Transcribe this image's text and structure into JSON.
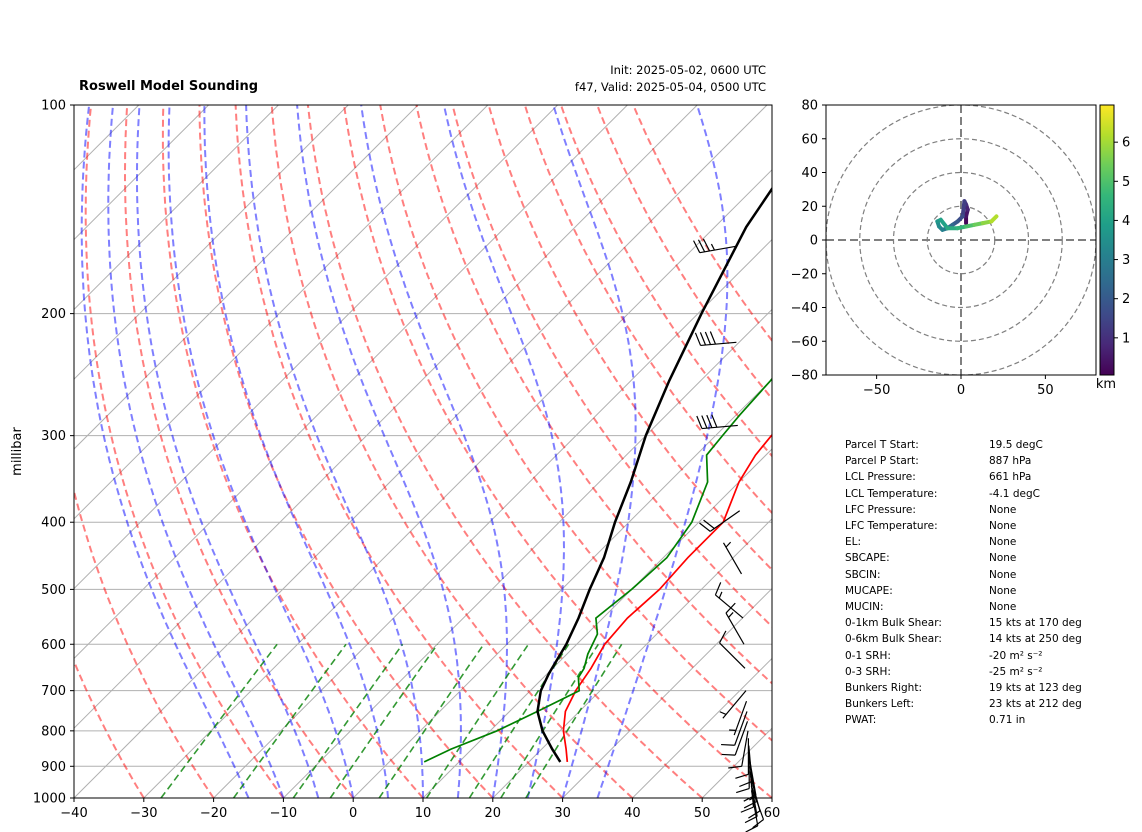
{
  "header": {
    "title": "Roswell Model Sounding",
    "init": "Init: 2025-05-02, 0600 UTC",
    "valid": "f47, Valid: 2025-05-04, 0500 UTC"
  },
  "skewt": {
    "ylabel": "millibar",
    "pressure_ticks": [
      "100",
      "200",
      "300",
      "400",
      "500",
      "600",
      "700",
      "800",
      "900",
      "1000"
    ],
    "temp_ticks": [
      "−40",
      "−30",
      "−20",
      "−10",
      "0",
      "10",
      "20",
      "30",
      "40",
      "50",
      "60"
    ]
  },
  "hodograph": {
    "x_ticks": [
      "−50",
      "0",
      "50"
    ],
    "y_ticks": [
      "80",
      "60",
      "40",
      "20",
      "0",
      "−20",
      "−40",
      "−60",
      "−80"
    ],
    "colorbar_ticks": [
      "1",
      "2",
      "3",
      "4",
      "5",
      "6"
    ],
    "colorbar_label": "km"
  },
  "parameters": [
    {
      "key": "Parcel T Start:",
      "value": "19.5 degC"
    },
    {
      "key": "Parcel P Start:",
      "value": "887 hPa"
    },
    {
      "key": "LCL Pressure:",
      "value": "661 hPa"
    },
    {
      "key": "LCL Temperature:",
      "value": "-4.1 degC"
    },
    {
      "key": "LFC Pressure:",
      "value": "None"
    },
    {
      "key": "LFC Temperature:",
      "value": "None"
    },
    {
      "key": "EL:",
      "value": "None"
    },
    {
      "key": "SBCAPE:",
      "value": "None"
    },
    {
      "key": "SBCIN:",
      "value": "None"
    },
    {
      "key": "MUCAPE:",
      "value": "None"
    },
    {
      "key": "MUCIN:",
      "value": "None"
    },
    {
      "key": "0-1km Bulk Shear:",
      "value": "15 kts at 170 deg"
    },
    {
      "key": "0-6km Bulk Shear:",
      "value": "14 kts at 250 deg"
    },
    {
      "key": "0-1 SRH:",
      "value": "-20 m² s⁻²"
    },
    {
      "key": "0-3 SRH:",
      "value": "-25 m² s⁻²"
    },
    {
      "key": "Bunkers Right:",
      "value": "19 kts at 123 deg"
    },
    {
      "key": "Bunkers Left:",
      "value": "23 kts at 212 deg"
    },
    {
      "key": "PWAT:",
      "value": "0.71 in"
    }
  ],
  "chart_data": [
    {
      "type": "line",
      "subtype": "skew-t",
      "title": "Roswell Model Sounding",
      "ylabel": "millibar",
      "y_scale": "log",
      "ylim": [
        1000,
        100
      ],
      "xlim": [
        -40,
        60
      ],
      "grid": true,
      "series": [
        {
          "name": "temperature",
          "color": "#ff0000",
          "points": [
            [
              1000,
              null
            ],
            [
              887,
              25.5
            ],
            [
              850,
              23.5
            ],
            [
              800,
              20.5
            ],
            [
              750,
              18.0
            ],
            [
              700,
              16.5
            ],
            [
              650,
              15.5
            ],
            [
              600,
              14.0
            ],
            [
              550,
              13.5
            ],
            [
              500,
              14.0
            ],
            [
              450,
              13.5
            ],
            [
              400,
              13.5
            ],
            [
              350,
              10.0
            ],
            [
              320,
              8.5
            ],
            [
              300,
              8.0
            ],
            [
              270,
              8.5
            ],
            [
              250,
              10.5
            ],
            [
              230,
              12.0
            ],
            [
              200,
              17.0
            ],
            [
              170,
              22.5
            ],
            [
              150,
              25.5
            ],
            [
              130,
              29.0
            ],
            [
              115,
              34.0
            ],
            [
              100,
              38.0
            ]
          ]
        },
        {
          "name": "dewpoint",
          "color": "#008000",
          "points": [
            [
              887,
              5.0
            ],
            [
              850,
              7.0
            ],
            [
              800,
              11.0
            ],
            [
              750,
              14.0
            ],
            [
              700,
              17.0
            ],
            [
              670,
              15.0
            ],
            [
              650,
              14.5
            ],
            [
              620,
              13.0
            ],
            [
              580,
              11.5
            ],
            [
              550,
              9.0
            ],
            [
              500,
              10.0
            ],
            [
              450,
              10.5
            ],
            [
              400,
              9.0
            ],
            [
              350,
              5.5
            ],
            [
              320,
              1.5
            ],
            [
              300,
              1.0
            ],
            [
              280,
              0.5
            ],
            [
              250,
              0.0
            ],
            [
              220,
              -1.0
            ],
            [
              200,
              -2.5
            ],
            [
              170,
              -5.5
            ],
            [
              150,
              -6.5
            ],
            [
              130,
              -3.5
            ],
            [
              115,
              -0.5
            ],
            [
              100,
              4.0
            ]
          ]
        },
        {
          "name": "parcel profile",
          "color": "#000000",
          "points": [
            [
              887,
              24.5
            ],
            [
              850,
              21.5
            ],
            [
              800,
              17.5
            ],
            [
              750,
              14.0
            ],
            [
              700,
              11.5
            ],
            [
              661,
              10.2
            ],
            [
              600,
              8.5
            ],
            [
              550,
              6.5
            ],
            [
              500,
              4.0
            ],
            [
              450,
              1.5
            ],
            [
              400,
              -2.0
            ],
            [
              350,
              -5.5
            ],
            [
              300,
              -10.0
            ],
            [
              250,
              -14.5
            ],
            [
              200,
              -19.5
            ],
            [
              150,
              -25.5
            ],
            [
              130,
              -27.5
            ],
            [
              115,
              -28.5
            ],
            [
              100,
              -29.5
            ]
          ]
        }
      ],
      "dry_adiabats_degC": [
        -30,
        -20,
        -10,
        0,
        10,
        20,
        30,
        40,
        50,
        60,
        70,
        80,
        90,
        100,
        110,
        120,
        130,
        140
      ],
      "moist_adiabats_degC": [
        -15,
        -10,
        -5,
        0,
        5,
        10,
        15,
        20,
        25,
        30,
        35
      ],
      "mixing_ratio_g_per_kg": [
        0.4,
        1,
        2,
        3,
        5,
        8,
        12,
        16,
        20
      ],
      "barbs": [
        {
          "p": 975,
          "spd": 10,
          "dir": 170
        },
        {
          "p": 960,
          "spd": 10,
          "dir": 160
        },
        {
          "p": 945,
          "spd": 10,
          "dir": 170
        },
        {
          "p": 930,
          "spd": 10,
          "dir": 165
        },
        {
          "p": 915,
          "spd": 10,
          "dir": 175
        },
        {
          "p": 900,
          "spd": 15,
          "dir": 170
        },
        {
          "p": 880,
          "spd": 10,
          "dir": 170
        },
        {
          "p": 860,
          "spd": 10,
          "dir": 180
        },
        {
          "p": 840,
          "spd": 10,
          "dir": 175
        },
        {
          "p": 820,
          "spd": 10,
          "dir": 180
        },
        {
          "p": 800,
          "spd": 10,
          "dir": 190
        },
        {
          "p": 775,
          "spd": 10,
          "dir": 200
        },
        {
          "p": 750,
          "spd": 10,
          "dir": 200
        },
        {
          "p": 725,
          "spd": 5,
          "dir": 200
        },
        {
          "p": 700,
          "spd": 5,
          "dir": 220
        },
        {
          "p": 650,
          "spd": 10,
          "dir": 315
        },
        {
          "p": 600,
          "spd": 15,
          "dir": 330
        },
        {
          "p": 550,
          "spd": 15,
          "dir": 310
        },
        {
          "p": 475,
          "spd": 5,
          "dir": 330
        },
        {
          "p": 385,
          "spd": 20,
          "dir": 235
        },
        {
          "p": 290,
          "spd": 40,
          "dir": 265
        },
        {
          "p": 220,
          "spd": 40,
          "dir": 265
        },
        {
          "p": 160,
          "spd": 35,
          "dir": 260
        }
      ]
    },
    {
      "type": "line",
      "subtype": "hodograph",
      "xlim": [
        -80,
        80
      ],
      "ylim": [
        -80,
        80
      ],
      "grid": true,
      "rings": [
        20,
        40,
        60,
        80
      ],
      "colorbar_range_km": [
        0,
        7
      ],
      "u": [
        3,
        3,
        4,
        3,
        2,
        1,
        -2,
        -5,
        -8,
        -11,
        -13,
        -14,
        -12,
        -8,
        -2,
        3,
        8,
        13,
        18,
        21
      ],
      "v": [
        10,
        14,
        18,
        21,
        23,
        14,
        11,
        9,
        7,
        6,
        8,
        11,
        12,
        7,
        7,
        8,
        9,
        10,
        11,
        14
      ],
      "height_km": [
        0.1,
        0.4,
        0.7,
        1.0,
        1.3,
        1.6,
        2.0,
        2.4,
        2.8,
        3.1,
        3.4,
        3.7,
        4.0,
        4.3,
        4.6,
        5.0,
        5.4,
        5.8,
        6.2,
        6.6
      ]
    }
  ]
}
